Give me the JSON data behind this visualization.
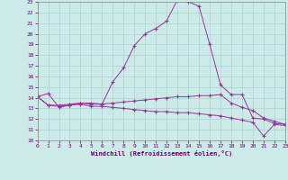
{
  "xlabel": "Windchill (Refroidissement éolien,°C)",
  "bg_color": "#cceae8",
  "grid_color": "#aad4d2",
  "line_color": "#993399",
  "xlim": [
    0,
    23
  ],
  "ylim": [
    10,
    23
  ],
  "xticks": [
    0,
    1,
    2,
    3,
    4,
    5,
    6,
    7,
    8,
    9,
    10,
    11,
    12,
    13,
    14,
    15,
    16,
    17,
    18,
    19,
    20,
    21,
    22,
    23
  ],
  "yticks": [
    10,
    11,
    12,
    13,
    14,
    15,
    16,
    17,
    18,
    19,
    20,
    21,
    22,
    23
  ],
  "series1": {
    "x": [
      0,
      1,
      2,
      3,
      4,
      5,
      6,
      7,
      8,
      9,
      10,
      11,
      12,
      13,
      14,
      15,
      16,
      17,
      18,
      19,
      20,
      21,
      22,
      23
    ],
    "y": [
      14.1,
      14.4,
      13.1,
      13.3,
      13.5,
      13.5,
      13.4,
      15.5,
      16.8,
      18.9,
      20.0,
      20.5,
      21.2,
      23.2,
      23.0,
      22.6,
      19.0,
      15.2,
      14.3,
      14.3,
      12.1,
      12.0,
      11.6,
      11.5
    ]
  },
  "series2": {
    "x": [
      0,
      1,
      2,
      3,
      4,
      5,
      6,
      7,
      8,
      9,
      10,
      11,
      12,
      13,
      14,
      15,
      16,
      17,
      18,
      19,
      20,
      21,
      22,
      23
    ],
    "y": [
      14.1,
      13.3,
      13.3,
      13.4,
      13.5,
      13.4,
      13.4,
      13.5,
      13.6,
      13.7,
      13.8,
      13.9,
      14.0,
      14.1,
      14.1,
      14.2,
      14.2,
      14.3,
      13.5,
      13.1,
      12.8,
      12.1,
      11.8,
      11.5
    ]
  },
  "series3": {
    "x": [
      0,
      1,
      2,
      3,
      4,
      5,
      6,
      7,
      8,
      9,
      10,
      11,
      12,
      13,
      14,
      15,
      16,
      17,
      18,
      19,
      20,
      21,
      22,
      23
    ],
    "y": [
      14.1,
      13.3,
      13.2,
      13.3,
      13.4,
      13.2,
      13.2,
      13.1,
      13.0,
      12.9,
      12.8,
      12.7,
      12.7,
      12.6,
      12.6,
      12.5,
      12.4,
      12.3,
      12.1,
      11.9,
      11.7,
      10.4,
      11.5,
      11.4
    ]
  }
}
